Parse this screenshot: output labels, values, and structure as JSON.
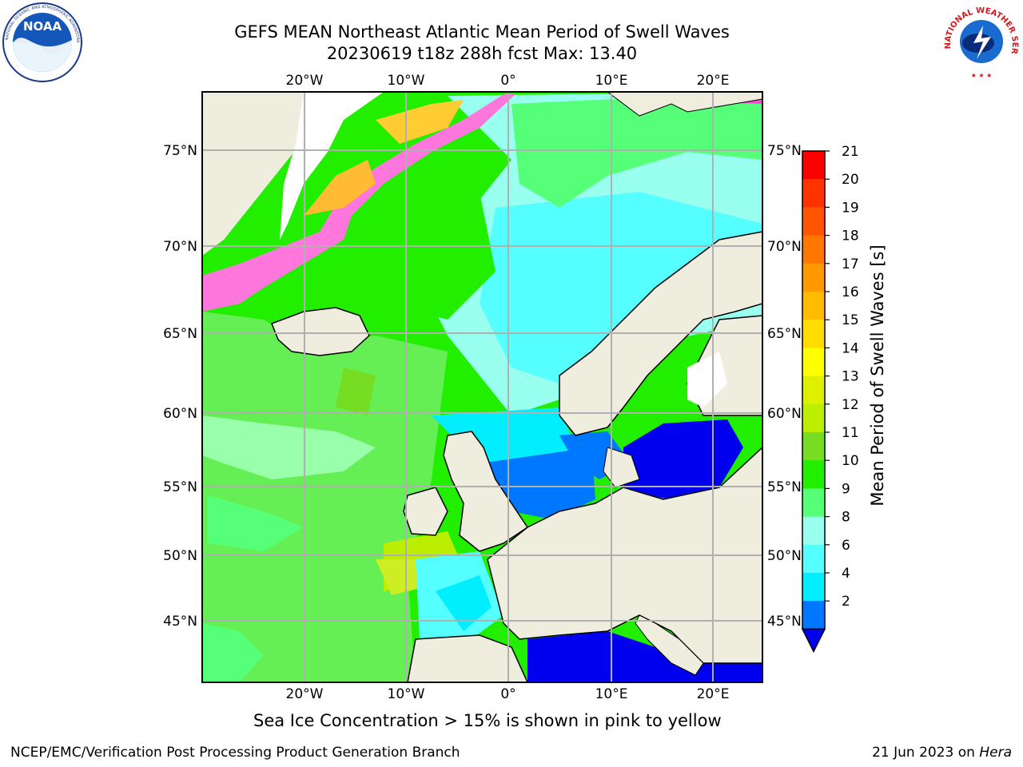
{
  "header": {
    "title_line1": "GEFS MEAN Northeast Atlantic Mean Period of Swell Waves",
    "title_line2": "20230619 t18z 288h fcst   Max: 13.40"
  },
  "map": {
    "lon_labels": [
      "20°W",
      "10°W",
      "0°",
      "10°E",
      "20°E"
    ],
    "lat_labels_left": [
      "75°N",
      "70°N",
      "65°N",
      "60°N",
      "55°N",
      "50°N",
      "45°N"
    ],
    "lat_labels_right": [
      "75°N",
      "70°N",
      "65°N",
      "60°N",
      "55°N",
      "50°N",
      "45°N"
    ]
  },
  "colorbar": {
    "label": "Mean Period of Swell Waves [s]",
    "ticks": [
      "21",
      "20",
      "19",
      "18",
      "17",
      "16",
      "15",
      "14",
      "13",
      "12",
      "11",
      "10",
      "9",
      "8",
      "6",
      "4",
      "2"
    ],
    "colors": [
      "#ff0000",
      "#ff3300",
      "#ff5500",
      "#ff7700",
      "#ff9900",
      "#ffbb00",
      "#ffdd00",
      "#ffff00",
      "#ddf000",
      "#bbee00",
      "#77dd22",
      "#22ee00",
      "#55ff77",
      "#99ffee",
      "#55ffff",
      "#00eeff",
      "#0077ff",
      "#0000ee"
    ]
  },
  "note": "Sea Ice Concentration > 15% is shown in pink to yellow",
  "footer": {
    "left": "NCEP/EMC/Verification Post Processing Product Generation Branch",
    "right_date": "21 Jun 2023 on ",
    "right_host": "Hera"
  },
  "logos": {
    "noaa": "NOAA",
    "nws": "NATIONAL WEATHER SERVICE",
    "noaa_ring": "NATIONAL OCEANIC AND ATMOSPHERIC ADMINISTRATION · U.S. DEPARTMENT OF COMMERCE"
  }
}
